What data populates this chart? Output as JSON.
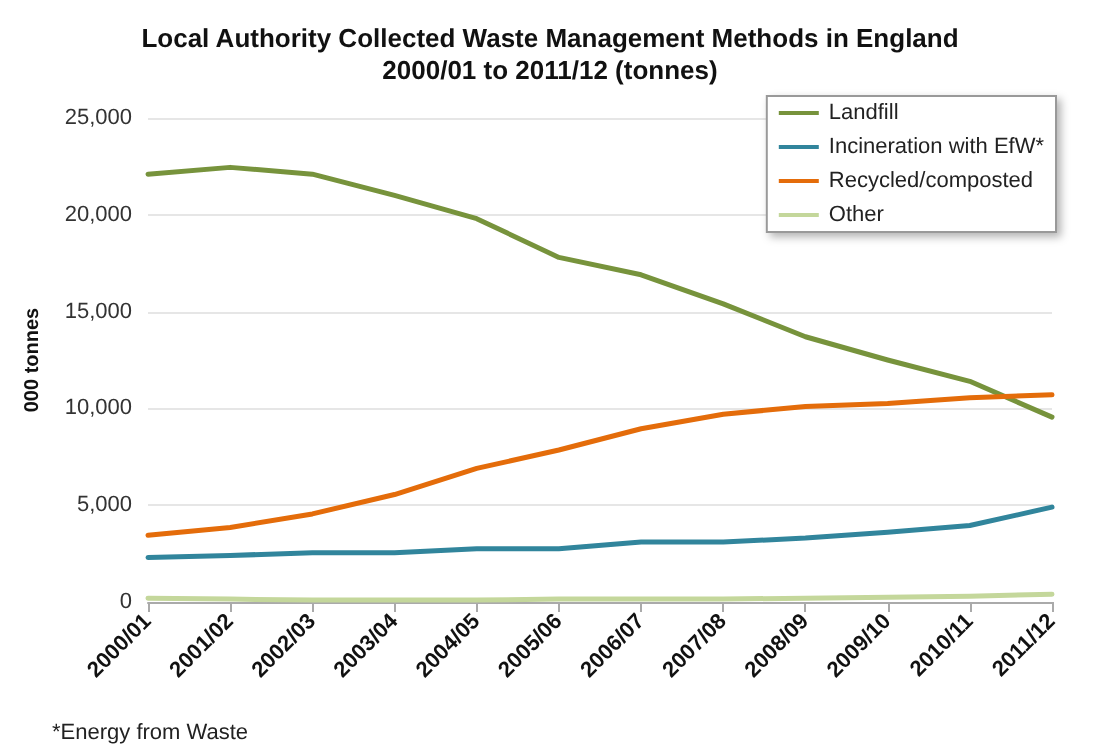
{
  "chart_data": {
    "type": "line",
    "title": "Local Authority Collected Waste Management Methods in England\n2000/01 to 2011/12 (tonnes)",
    "ylabel": "000 tonnes",
    "annotations": [
      "*Energy from Waste"
    ],
    "categories": [
      "2000/01",
      "2001/02",
      "2002/03",
      "2003/04",
      "2004/05",
      "2005/06",
      "2006/07",
      "2007/08",
      "2008/09",
      "2009/10",
      "2010/11",
      "2011/12"
    ],
    "series": [
      {
        "name": "Landfill",
        "color": "#77933c",
        "values": [
          22100,
          22450,
          22100,
          21000,
          19800,
          17800,
          16900,
          15400,
          13700,
          12500,
          11400,
          9550
        ]
      },
      {
        "name": "Incineration with EfW*",
        "color": "#31859c",
        "values": [
          2300,
          2400,
          2550,
          2550,
          2750,
          2750,
          3100,
          3100,
          3300,
          3600,
          3950,
          4900
        ]
      },
      {
        "name": "Recycled/composted",
        "color": "#e46c0a",
        "values": [
          3450,
          3850,
          4550,
          5550,
          6900,
          7850,
          8950,
          9700,
          10100,
          10250,
          10550,
          10700
        ]
      },
      {
        "name": "Other",
        "color": "#c4d79b",
        "values": [
          200,
          150,
          100,
          100,
          100,
          150,
          150,
          150,
          200,
          250,
          300,
          400
        ]
      }
    ],
    "ylim": [
      0,
      25000
    ],
    "yticks": [
      {
        "value": 0,
        "label": "0"
      },
      {
        "value": 5000,
        "label": "5,000"
      },
      {
        "value": 10000,
        "label": "10,000"
      },
      {
        "value": 15000,
        "label": "15,000"
      },
      {
        "value": 20000,
        "label": "20,000"
      },
      {
        "value": 25000,
        "label": "25,000"
      }
    ],
    "grid": "y",
    "legend": "top right",
    "marker": "none",
    "line_style": "solid"
  }
}
